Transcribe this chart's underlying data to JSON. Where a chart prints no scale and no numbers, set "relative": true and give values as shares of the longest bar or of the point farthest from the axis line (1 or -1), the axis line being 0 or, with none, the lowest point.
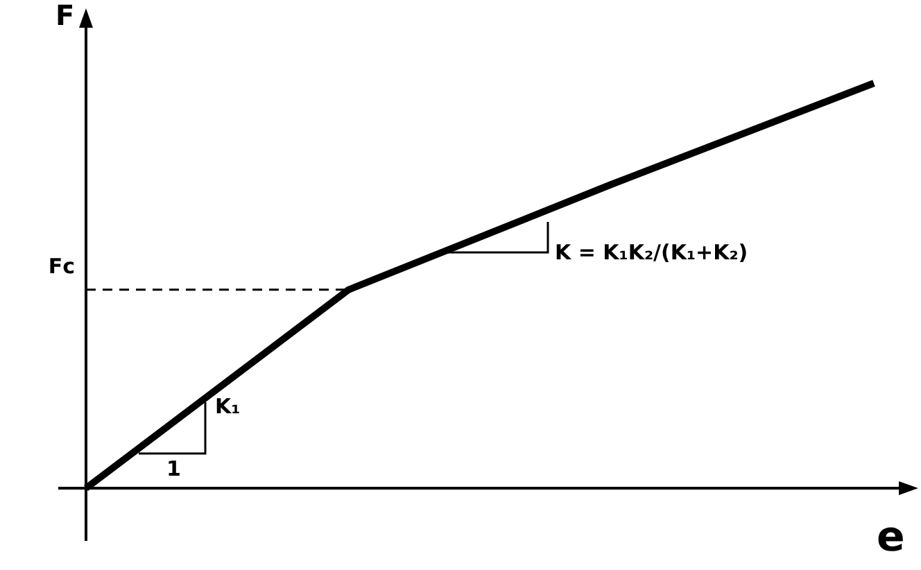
{
  "chart_data": {
    "type": "line",
    "xlabel": "e",
    "ylabel": "F",
    "relative": true,
    "line_style": "solid",
    "categories": [
      null,
      null,
      null,
      null
    ],
    "series": [
      {
        "color": "#000000",
        "values": [
          0,
          0.49,
          0.75,
          1
        ]
      }
    ],
    "ref_lines": [
      {
        "axis": "y",
        "value": 0.49,
        "label": "Fc",
        "line_style": "dashed",
        "color": "#000000"
      }
    ],
    "annotations": [
      "1",
      "K₁",
      "K = K₁K₂/(K₁+K₂)"
    ]
  }
}
